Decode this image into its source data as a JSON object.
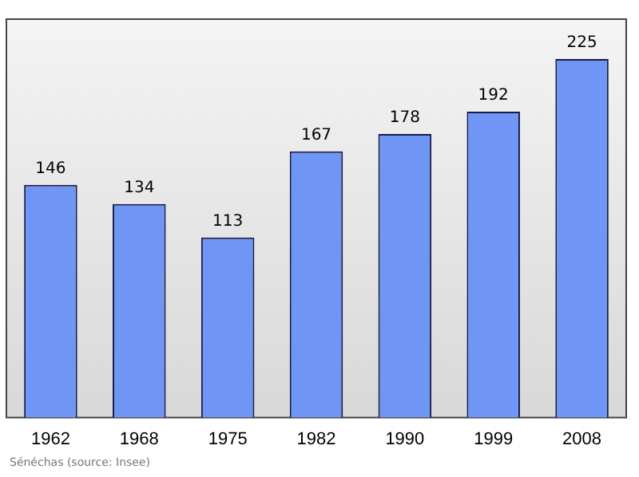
{
  "chart_data": {
    "type": "bar",
    "categories": [
      "1962",
      "1968",
      "1975",
      "1982",
      "1990",
      "1999",
      "2008"
    ],
    "values": [
      146,
      134,
      113,
      167,
      178,
      192,
      225
    ],
    "color": "#6f96f5",
    "ylim": [
      0,
      250
    ],
    "data_labels": true,
    "grid": false,
    "legend": false,
    "tick_labels": "x",
    "annotations": [
      "Sénéchas    (source: Insee)"
    ]
  }
}
